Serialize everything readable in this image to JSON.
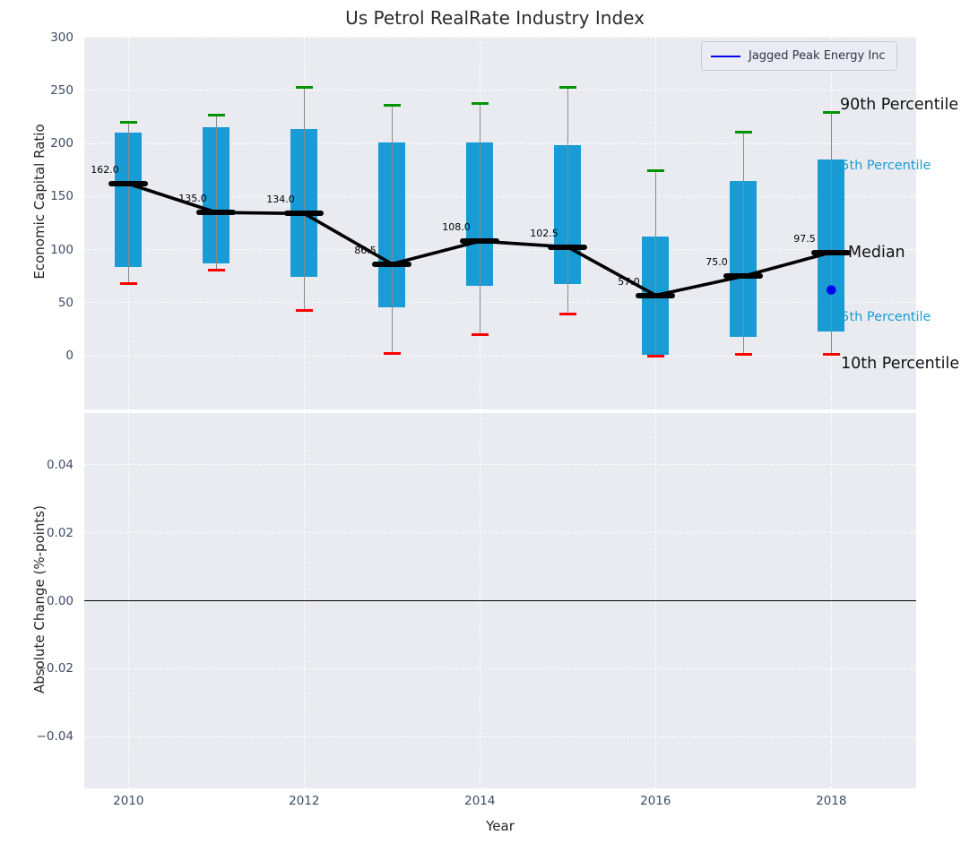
{
  "title": "Us Petrol RealRate Industry Index",
  "legend": {
    "label": "Jagged Peak Energy Inc",
    "line_color": "#0404f0"
  },
  "axes": {
    "xlabel": "Year",
    "x_ticks": [
      2010,
      2012,
      2014,
      2016,
      2018
    ],
    "top": {
      "ylabel": "Economic Capital Ratio",
      "y_ticks": [
        0,
        50,
        100,
        150,
        200,
        250,
        300
      ],
      "ylim": [
        -50.5,
        300.5
      ]
    },
    "bottom": {
      "ylabel": "Absolute Change (%-points)",
      "y_ticks": [
        0.04,
        0.02,
        0.0,
        -0.02,
        -0.04
      ],
      "ylim": [
        -0.0553,
        0.0553
      ],
      "zero_line": 0.0
    }
  },
  "chart_data": {
    "type": "boxplot",
    "title": "Us Petrol RealRate Industry Index",
    "x": [
      2010,
      2011,
      2012,
      2013,
      2014,
      2015,
      2016,
      2017,
      2018
    ],
    "xlabel": "Year",
    "ylabel": "Economic Capital Ratio",
    "grid": "white-dashed",
    "legend_position": "upper right",
    "series": [
      {
        "name": "90th Percentile",
        "role": "p90",
        "color": "#009400",
        "values": [
          220,
          227,
          253,
          236,
          238,
          253,
          174,
          211,
          229
        ]
      },
      {
        "name": "75th Percentile",
        "role": "p75",
        "color": "#199cd6",
        "values": [
          210,
          215,
          214,
          201,
          201,
          198,
          112,
          165,
          185
        ]
      },
      {
        "name": "Median",
        "role": "median",
        "color": "#000000",
        "values": [
          162.0,
          135.0,
          134.0,
          86.5,
          108.0,
          102.5,
          57.0,
          75.0,
          97.5
        ]
      },
      {
        "name": "25th Percentile",
        "role": "p25",
        "color": "#199cd6",
        "values": [
          84,
          87,
          74,
          46,
          66,
          68,
          1,
          18,
          23
        ]
      },
      {
        "name": "10th Percentile",
        "role": "p10",
        "color": "#ff0000",
        "values": [
          68,
          81,
          43,
          2,
          20,
          39,
          0,
          1,
          1
        ]
      }
    ],
    "median_labels": [
      "162.0",
      "135.0",
      "134.0",
      "86.5",
      "108.0",
      "102.5",
      "57.0",
      "75.0",
      "97.5"
    ],
    "company_point": {
      "name": "Jagged Peak Energy Inc",
      "x": 2018,
      "y": 62
    },
    "bottom_panel": {
      "type": "empty",
      "ylabel": "Absolute Change (%-points)",
      "zero_line": 0.0
    }
  },
  "right_labels": [
    {
      "text": "90th Percentile",
      "kind": "p90",
      "style": "major"
    },
    {
      "text": "75th Percentile",
      "kind": "p75",
      "style": "minor"
    },
    {
      "text": "Median",
      "kind": "median",
      "style": "major"
    },
    {
      "text": "25th Percentile",
      "kind": "p25",
      "style": "minor"
    },
    {
      "text": "10th Percentile",
      "kind": "p10",
      "style": "major"
    }
  ],
  "colors": {
    "box": "#199cd6",
    "green_cap": "#009400",
    "red_cap": "#ff0000",
    "median": "#000000",
    "company_dot": "#0404f0",
    "whisker": "#8a8a8a",
    "plot_bg": "#e9ebf0",
    "grid": "#ffffff",
    "tick_text": "#3d4c63",
    "title_text": "#2a2a2a",
    "major_label": "#111111",
    "minor_label": "#199cd6",
    "legend_bg": "rgba(234,235,243,0.88)",
    "legend_border": "#c9cad4",
    "legend_text": "#2c3547",
    "zero_line": "#000000"
  }
}
